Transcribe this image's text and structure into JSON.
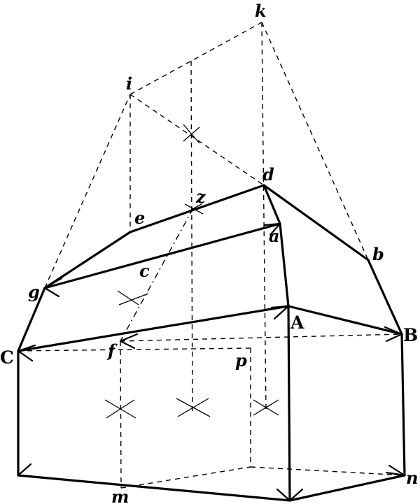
{
  "labels": {
    "k": "k",
    "i": "i",
    "d": "d",
    "z": "z",
    "e": "e",
    "a": "a",
    "b": "b",
    "c": "c",
    "g": "g",
    "A": "A",
    "B": "B",
    "C": "C",
    "f": "f",
    "p": "p",
    "m": "m",
    "n": "n"
  }
}
